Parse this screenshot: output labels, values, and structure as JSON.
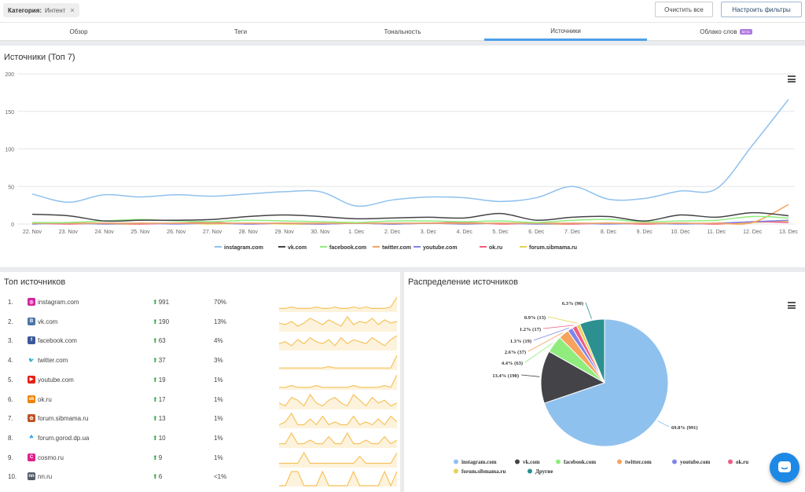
{
  "filter_bar": {
    "chip_label": "Категория:",
    "chip_value": "Интент",
    "chip_close": "×",
    "clear_all": "Очистить все",
    "configure_filters": "Настроить фильтры"
  },
  "tabs": [
    {
      "label": "Обзор",
      "active": false
    },
    {
      "label": "Теги",
      "active": false
    },
    {
      "label": "Тональность",
      "active": false
    },
    {
      "label": "Источники",
      "active": true
    },
    {
      "label": "Облако слов",
      "active": false,
      "badge": "BETA"
    }
  ],
  "colors": {
    "instagram": "#8fc1ee",
    "vk": "#434348",
    "facebook": "#90ed7d",
    "twitter": "#f7a35c",
    "youtube": "#8085e9",
    "okru": "#f15c80",
    "forum": "#e4d354",
    "other": "#2b908f",
    "spark": "#f7c25c",
    "accent": "#4d9fe8"
  },
  "line_chart": {
    "title": "Источники (Топ 7)",
    "chart_data": {
      "type": "line",
      "ylim": [
        0,
        200
      ],
      "yticks": [
        0,
        50,
        100,
        150,
        200
      ],
      "categories": [
        "22. Nov",
        "23. Nov",
        "24. Nov",
        "25. Nov",
        "26. Nov",
        "27. Nov",
        "28. Nov",
        "29. Nov",
        "30. Nov",
        "1. Dec",
        "2. Dec",
        "3. Dec",
        "4. Dec",
        "5. Dec",
        "6. Dec",
        "7. Dec",
        "8. Dec",
        "9. Dec",
        "10. Dec",
        "11. Dec",
        "12. Dec",
        "13. Dec"
      ],
      "series": [
        {
          "name": "instagram.com",
          "key": "instagram",
          "values": [
            40,
            29,
            39,
            36,
            39,
            37,
            40,
            43,
            43,
            24,
            32,
            36,
            35,
            30,
            35,
            50,
            33,
            34,
            44,
            47,
            105,
            166
          ]
        },
        {
          "name": "vk.com",
          "key": "vk",
          "values": [
            13,
            11,
            4,
            5,
            5,
            6,
            10,
            12,
            10,
            7,
            8,
            9,
            8,
            14,
            5,
            9,
            10,
            4,
            12,
            9,
            15,
            11
          ]
        },
        {
          "name": "facebook.com",
          "key": "facebook",
          "values": [
            2,
            2,
            4,
            6,
            4,
            3,
            5,
            4,
            3,
            2,
            4,
            4,
            3,
            4,
            2,
            5,
            6,
            3,
            4,
            5,
            10,
            8
          ]
        },
        {
          "name": "twitter.com",
          "key": "twitter",
          "values": [
            1,
            1,
            1,
            1,
            1,
            1,
            1,
            1,
            1,
            1,
            1,
            1,
            1,
            1,
            1,
            1,
            1,
            1,
            1,
            1,
            2,
            26
          ]
        },
        {
          "name": "youtube.com",
          "key": "youtube",
          "values": [
            0,
            1,
            0,
            1,
            0,
            1,
            0,
            1,
            0,
            1,
            0,
            1,
            0,
            1,
            0,
            1,
            0,
            1,
            0,
            1,
            3,
            5
          ]
        },
        {
          "name": "ok.ru",
          "key": "okru",
          "values": [
            1,
            0,
            1,
            0,
            1,
            2,
            0,
            1,
            0,
            1,
            0,
            1,
            2,
            0,
            1,
            0,
            1,
            0,
            1,
            0,
            3,
            2
          ]
        },
        {
          "name": "forum.sibmama.ru",
          "key": "forum",
          "values": [
            0,
            1,
            0,
            0,
            1,
            0,
            1,
            0,
            0,
            1,
            0,
            1,
            0,
            1,
            0,
            0,
            1,
            0,
            1,
            0,
            2,
            4
          ]
        }
      ]
    }
  },
  "top_sources": {
    "title": "Топ источников",
    "rows": [
      {
        "rank": "1.",
        "name": "instagram.com",
        "count": "991",
        "pct": "70%",
        "icon": "instagram-icon",
        "icon_color": "#d6249f",
        "icon_char": "◎",
        "spark": [
          2,
          2,
          3,
          2,
          2,
          2,
          3,
          2,
          2,
          3,
          2,
          2,
          3,
          2,
          3,
          2,
          2,
          2,
          3,
          10
        ]
      },
      {
        "rank": "2.",
        "name": "vk.com",
        "count": "190",
        "pct": "13%",
        "icon": "vk-icon",
        "icon_color": "#4a76a8",
        "icon_char": "B",
        "spark": [
          5,
          4,
          6,
          3,
          5,
          8,
          6,
          4,
          7,
          5,
          3,
          9,
          4,
          6,
          5,
          8,
          4,
          7,
          5,
          6
        ]
      },
      {
        "rank": "3.",
        "name": "facebook.com",
        "count": "63",
        "pct": "4%",
        "icon": "facebook-icon",
        "icon_color": "#3b5998",
        "icon_char": "f",
        "spark": [
          3,
          4,
          2,
          5,
          3,
          6,
          4,
          3,
          5,
          2,
          6,
          3,
          5,
          4,
          3,
          6,
          4,
          2,
          5,
          7
        ]
      },
      {
        "rank": "4.",
        "name": "twitter.com",
        "count": "37",
        "pct": "3%",
        "icon": "twitter-icon",
        "icon_color": "#ffffff",
        "icon_char": "🐦",
        "spark": [
          1,
          1,
          1,
          1,
          1,
          1,
          1,
          1,
          2,
          1,
          1,
          1,
          1,
          1,
          1,
          1,
          1,
          1,
          1,
          10
        ]
      },
      {
        "rank": "5.",
        "name": "youtube.com",
        "count": "19",
        "pct": "1%",
        "icon": "youtube-icon",
        "icon_color": "#e62117",
        "icon_char": "▶",
        "spark": [
          1,
          1,
          2,
          1,
          1,
          1,
          2,
          1,
          1,
          1,
          1,
          1,
          2,
          1,
          1,
          1,
          1,
          2,
          1,
          8
        ]
      },
      {
        "rank": "6.",
        "name": "ok.ru",
        "count": "17",
        "pct": "1%",
        "icon": "ok-icon",
        "icon_color": "#ee8208",
        "icon_char": "ok",
        "spark": [
          2,
          1,
          4,
          3,
          1,
          5,
          2,
          1,
          3,
          4,
          2,
          1,
          5,
          3,
          1,
          4,
          2,
          3,
          1,
          2
        ]
      },
      {
        "rank": "7.",
        "name": "forum.sibmama.ru",
        "count": "13",
        "pct": "1%",
        "icon": "sibmama-icon",
        "icon_color": "#c0522a",
        "icon_char": "✿",
        "spark": [
          1,
          2,
          5,
          1,
          1,
          3,
          1,
          4,
          1,
          2,
          1,
          1,
          4,
          1,
          2,
          1,
          3,
          1,
          4,
          2
        ]
      },
      {
        "rank": "8.",
        "name": "forum.gorod.dp.ua",
        "count": "10",
        "pct": "1%",
        "icon": "gorod-icon",
        "icon_color": "#ffffff",
        "icon_char": "☘",
        "spark": [
          1,
          1,
          4,
          1,
          1,
          2,
          1,
          1,
          3,
          1,
          1,
          4,
          1,
          1,
          2,
          1,
          1,
          3,
          1,
          2
        ]
      },
      {
        "rank": "9.",
        "name": "cosmo.ru",
        "count": "9",
        "pct": "1%",
        "icon": "cosmo-icon",
        "icon_color": "#e0218a",
        "icon_char": "C",
        "spark": [
          1,
          1,
          1,
          1,
          4,
          1,
          1,
          1,
          1,
          1,
          1,
          1,
          1,
          3,
          1,
          1,
          1,
          1,
          1,
          4
        ]
      },
      {
        "rank": "10.",
        "name": "nn.ru",
        "count": "6",
        "pct": "<1%",
        "icon": "nn-icon",
        "icon_color": "#555b66",
        "icon_char": "nn",
        "spark": [
          0,
          0,
          3,
          3,
          0,
          0,
          0,
          3,
          0,
          0,
          0,
          0,
          3,
          0,
          0,
          0,
          0,
          3,
          0,
          3
        ]
      }
    ]
  },
  "pie_chart": {
    "title": "Распределение источников",
    "chart_data": {
      "type": "pie",
      "slices": [
        {
          "name": "instagram.com",
          "key": "instagram",
          "value": 991,
          "label": "69.8% (991)"
        },
        {
          "name": "vk.com",
          "key": "vk",
          "value": 190,
          "label": "13.4% (190)"
        },
        {
          "name": "facebook.com",
          "key": "facebook",
          "value": 63,
          "label": "4.4% (63)"
        },
        {
          "name": "twitter.com",
          "key": "twitter",
          "value": 37,
          "label": "2.6% (37)"
        },
        {
          "name": "youtube.com",
          "key": "youtube",
          "value": 19,
          "label": "1.3% (19)"
        },
        {
          "name": "ok.ru",
          "key": "okru",
          "value": 17,
          "label": "1.2% (17)"
        },
        {
          "name": "forum.sibmama.ru",
          "key": "forum",
          "value": 13,
          "label": "0.9% (13)"
        },
        {
          "name": "Другие",
          "key": "other",
          "value": 90,
          "label": "6.3% (90)"
        }
      ]
    }
  }
}
